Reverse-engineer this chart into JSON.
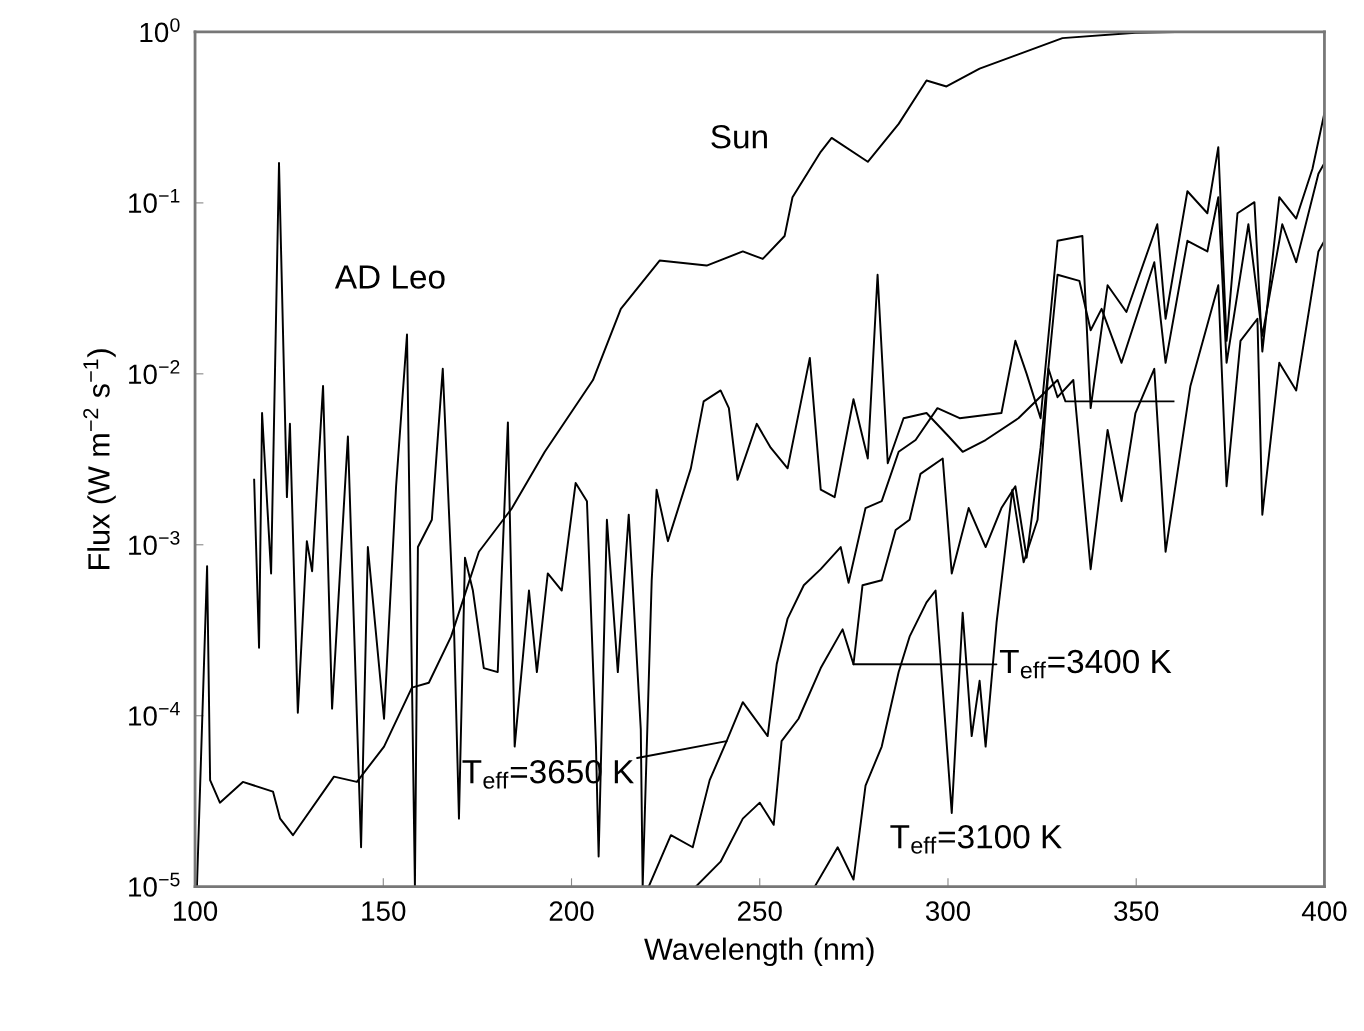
{
  "chart_data": {
    "type": "line",
    "xlabel": "Wavelength (nm)",
    "ylabel": "Flux (W m$^{−2}$ s$^{−1}$)",
    "log": "y",
    "xlim": [
      100,
      400
    ],
    "xticks": [
      100,
      150,
      200,
      250,
      300,
      350,
      400
    ],
    "ylim": [
      1e-05,
      1
    ],
    "yticks": [
      {
        "value": 1e-05,
        "label": "10$^{−5}$"
      },
      {
        "value": 0.0001,
        "label": "10$^{−4}$"
      },
      {
        "value": 0.001,
        "label": "10$^{−3}$"
      },
      {
        "value": 0.01,
        "label": "10$^{−2}$"
      },
      {
        "value": 0.1,
        "label": "10$^{−1}$"
      },
      {
        "value": 1,
        "label": "10$^{0}$"
      }
    ],
    "line_style": "solid",
    "marker": "none",
    "series": [
      {
        "name": "Sun",
        "color": "#000000",
        "x": [
          100.5,
          103.2,
          104.0,
          106.6,
          112.7,
          120.7,
          122.6,
          126.0,
          136.9,
          143.0,
          150.2,
          157.6,
          162.1,
          168.0,
          175.4,
          184.2,
          192.9,
          205.7,
          213.1,
          223.4,
          235.9,
          245.5,
          250.8,
          256.6,
          258.7,
          266.2,
          269.1,
          278.7,
          286.9,
          294.3,
          299.6,
          308.4,
          330.4,
          349.8,
          360.2
        ],
        "values": [
          1e-05,
          0.00075,
          4.2e-05,
          3.1e-05,
          4.1e-05,
          3.6e-05,
          2.5e-05,
          2e-05,
          4.4e-05,
          4.1e-05,
          6.6e-05,
          0.000146,
          0.000156,
          0.00029,
          0.00091,
          0.00164,
          0.0035,
          0.0092,
          0.024,
          0.046,
          0.043,
          0.052,
          0.047,
          0.064,
          0.108,
          0.199,
          0.24,
          0.174,
          0.29,
          0.52,
          0.48,
          0.61,
          0.92,
          0.99,
          1.0
        ]
      },
      {
        "name": "AD Leo",
        "color": "#000000",
        "x": [
          115.7,
          117.0,
          117.8,
          120.2,
          122.3,
          124.4,
          125.2,
          127.3,
          129.7,
          131.1,
          134.0,
          136.4,
          140.6,
          144.1,
          145.9,
          150.2,
          153.4,
          156.3,
          158.4,
          159.2,
          162.9,
          165.8,
          168.8,
          170.1,
          171.7,
          173.8,
          176.7,
          180.4,
          183.1,
          184.9,
          188.7,
          190.8,
          193.7,
          197.4,
          201.1,
          204.1,
          206.5,
          207.2,
          209.4,
          212.3,
          215.2,
          218.4,
          218.9,
          221.3,
          222.6,
          225.6,
          231.7,
          235.1,
          239.6,
          241.8,
          244.1,
          249.2,
          252.9,
          257.4,
          263.3,
          266.2,
          269.9,
          274.9,
          278.7,
          281.3,
          284.0,
          288.2,
          294.3,
          300.2,
          303.9,
          310.0,
          318.7,
          329.1,
          331.2,
          359.9
        ],
        "values": [
          0.0024,
          0.00025,
          0.0059,
          0.00068,
          0.171,
          0.0019,
          0.0051,
          0.000104,
          0.00105,
          0.0007,
          0.0085,
          0.00011,
          0.0043,
          1.7e-05,
          0.00097,
          9.6e-05,
          0.0022,
          0.017,
          1e-05,
          0.00097,
          0.0014,
          0.0107,
          0.00032,
          2.5e-05,
          0.00084,
          0.00054,
          0.00019,
          0.00018,
          0.0052,
          6.6e-05,
          0.00054,
          0.00018,
          0.00068,
          0.00054,
          0.0023,
          0.0018,
          6.6e-05,
          1.5e-05,
          0.0014,
          0.00018,
          0.0015,
          8.3e-05,
          1e-05,
          0.00062,
          0.0021,
          0.00105,
          0.0028,
          0.0069,
          0.008,
          0.0063,
          0.0024,
          0.0051,
          0.0037,
          0.0028,
          0.0124,
          0.0021,
          0.0019,
          0.0071,
          0.0032,
          0.038,
          0.003,
          0.0055,
          0.0059,
          0.0043,
          0.0035,
          0.0041,
          0.0055,
          0.0092,
          0.0069,
          0.0069
        ]
      },
      {
        "name": "T$_{eff}$=3650 K",
        "color": "#000000",
        "x": [
          218.9,
          220.5,
          226.4,
          232.2,
          236.7,
          241.2,
          245.5,
          252.1,
          254.5,
          257.4,
          261.7,
          266.2,
          271.5,
          273.6,
          278.1,
          282.4,
          286.9,
          291.4,
          297.2,
          303.1,
          314.2,
          317.9,
          320.9,
          324.6,
          329.1,
          335.7,
          337.9,
          342.4,
          347.4,
          355.6,
          357.8,
          363.6,
          368.9,
          371.8,
          374.0,
          376.9,
          381.4,
          383.5,
          388.0,
          392.5,
          396.8,
          400.0
        ],
        "values": [
          1e-05,
          1e-05,
          2e-05,
          1.7e-05,
          4.2e-05,
          7.1e-05,
          0.00012,
          7.6e-05,
          0.0002,
          0.00037,
          0.00058,
          0.00072,
          0.00097,
          0.0006,
          0.00164,
          0.0018,
          0.0035,
          0.0041,
          0.0063,
          0.0055,
          0.0059,
          0.0156,
          0.01,
          0.0055,
          0.06,
          0.064,
          0.0063,
          0.033,
          0.023,
          0.075,
          0.021,
          0.117,
          0.087,
          0.212,
          0.0156,
          0.087,
          0.101,
          0.0135,
          0.108,
          0.081,
          0.158,
          0.336
        ]
      },
      {
        "name": "T$_{eff}$=3400 K",
        "color": "#000000",
        "x": [
          233.0,
          239.6,
          245.5,
          250.0,
          253.7,
          255.8,
          260.3,
          266.2,
          272.0,
          274.9,
          277.3,
          282.4,
          286.1,
          289.8,
          292.7,
          298.6,
          301.0,
          305.5,
          310.0,
          314.2,
          317.9,
          320.9,
          324.6,
          329.1,
          334.9,
          337.9,
          340.8,
          346.1,
          354.8,
          357.8,
          363.6,
          368.9,
          371.8,
          374.0,
          379.8,
          383.5,
          388.8,
          392.5,
          398.4,
          400.0
        ],
        "values": [
          1e-05,
          1.4e-05,
          2.5e-05,
          3.1e-05,
          2.3e-05,
          7.1e-05,
          9.6e-05,
          0.00019,
          0.00032,
          0.0002,
          0.00058,
          0.00062,
          0.00122,
          0.0014,
          0.0026,
          0.0032,
          0.00068,
          0.00164,
          0.00097,
          0.00164,
          0.0022,
          0.00084,
          0.0037,
          0.038,
          0.035,
          0.018,
          0.024,
          0.0116,
          0.045,
          0.0116,
          0.06,
          0.052,
          0.108,
          0.0116,
          0.075,
          0.0167,
          0.075,
          0.045,
          0.148,
          0.171
        ]
      },
      {
        "name": "T$_{eff}$=3100 K",
        "color": "#000000",
        "x": [
          264.6,
          270.7,
          274.9,
          278.1,
          282.4,
          286.9,
          289.8,
          294.3,
          296.7,
          301.0,
          303.9,
          306.3,
          308.4,
          310.0,
          312.9,
          317.1,
          320.1,
          323.8,
          326.7,
          329.1,
          333.3,
          337.9,
          342.4,
          346.1,
          349.8,
          354.8,
          357.8,
          364.4,
          371.8,
          374.0,
          377.7,
          382.2,
          383.5,
          388.0,
          392.5,
          398.4,
          400.0
        ],
        "values": [
          1e-05,
          1.7e-05,
          1.1e-05,
          3.9e-05,
          6.6e-05,
          0.00018,
          0.00029,
          0.00046,
          0.00054,
          2.7e-05,
          0.0004,
          7.6e-05,
          0.00016,
          6.6e-05,
          0.00035,
          0.0021,
          0.00079,
          0.0014,
          0.0107,
          0.0073,
          0.0092,
          0.00072,
          0.0047,
          0.0018,
          0.0059,
          0.0107,
          0.00091,
          0.0085,
          0.033,
          0.0022,
          0.0156,
          0.021,
          0.0015,
          0.0116,
          0.008,
          0.052,
          0.06
        ]
      }
    ]
  }
}
